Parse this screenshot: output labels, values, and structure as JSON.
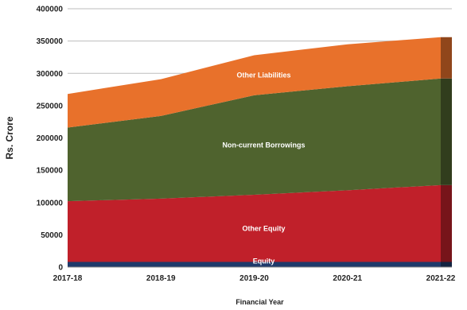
{
  "chart_data": {
    "type": "area",
    "stacked": true,
    "categories": [
      "2017-18",
      "2018-19",
      "2019-20",
      "2020-21",
      "2021-22"
    ],
    "series": [
      {
        "name": "Equity",
        "values": [
          8000,
          8000,
          8000,
          8000,
          8000
        ],
        "color": "#1f3a6b"
      },
      {
        "name": "Other Equity",
        "values": [
          94000,
          98000,
          104000,
          111000,
          119000
        ],
        "color": "#c0202a"
      },
      {
        "name": "Non-current Borrowings",
        "values": [
          114000,
          128000,
          154000,
          161000,
          165000
        ],
        "color": "#4f632e"
      },
      {
        "name": "Other Liabilities",
        "values": [
          52000,
          57000,
          62000,
          65000,
          64000
        ],
        "color": "#e8712b"
      }
    ],
    "xlabel": "Financial Year",
    "ylabel": "Rs. Crore",
    "ylim": [
      0,
      400000
    ],
    "yticks": [
      0,
      50000,
      100000,
      150000,
      200000,
      250000,
      300000,
      350000,
      400000
    ],
    "grid": true
  }
}
